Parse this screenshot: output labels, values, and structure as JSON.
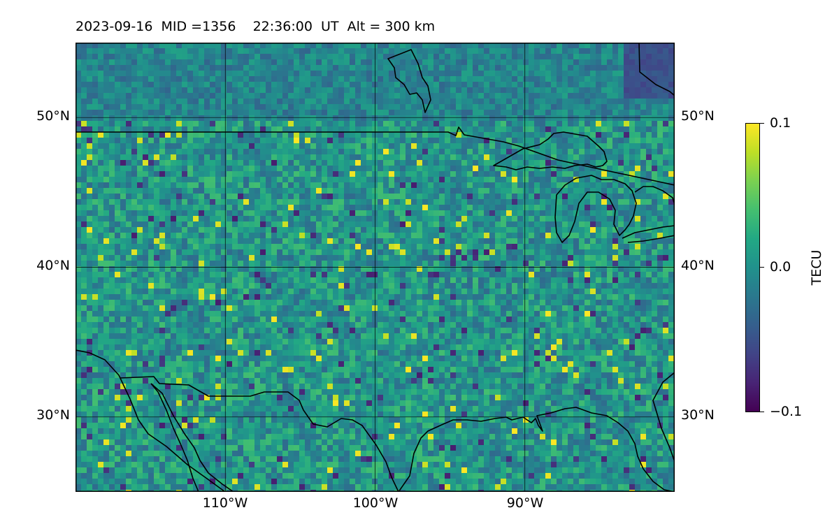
{
  "title": "2023-09-16  MID =1356    22:36:00  UT  Alt = 300 km",
  "map": {
    "projection": "plate-carree",
    "lon_range": [
      -120,
      -80
    ],
    "lat_range": [
      25,
      55
    ],
    "variable": "TEC perturbation",
    "coastlines": true,
    "borders": true,
    "gridlines": true
  },
  "lat_ticks": [
    {
      "value": 50,
      "label": "50°N"
    },
    {
      "value": 40,
      "label": "40°N"
    },
    {
      "value": 30,
      "label": "30°N"
    }
  ],
  "lon_ticks": [
    {
      "value": -110,
      "label": "110°W"
    },
    {
      "value": -100,
      "label": "100°W"
    },
    {
      "value": -90,
      "label": "90°W"
    }
  ],
  "colorbar": {
    "label": "TECU",
    "colormap": "viridis",
    "vmin": -0.1,
    "vmax": 0.1,
    "ticks": [
      {
        "value": 0.1,
        "label": "0.1"
      },
      {
        "value": 0.0,
        "label": "0.0"
      },
      {
        "value": -0.1,
        "label": "−0.1"
      }
    ]
  }
}
